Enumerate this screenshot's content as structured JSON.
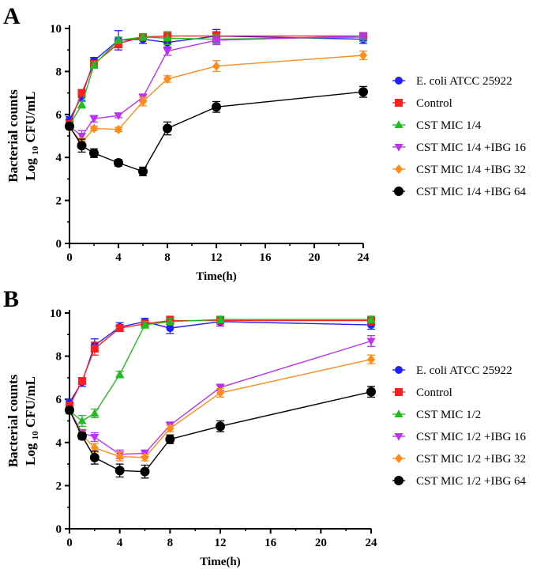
{
  "chart_data": [
    {
      "type": "line",
      "panel_label": "A",
      "xlabel": "Time(h)",
      "ylabel": "Bacterial counts",
      "ylabel_unit": {
        "pre": "Log",
        "sub": "10",
        "post": "CFU/mL"
      },
      "x": [
        0,
        1,
        2,
        4,
        6,
        8,
        12,
        24
      ],
      "xticks": [
        "0",
        "4",
        "8",
        "12",
        "16",
        "20",
        "24"
      ],
      "xlim": [
        0,
        24
      ],
      "yticks": [
        "0",
        "2",
        "4",
        "6",
        "8",
        "10"
      ],
      "ylim": [
        0,
        10
      ],
      "series": [
        {
          "name": "E. coli ATCC 25922",
          "color": "#1f1fff",
          "marker": "circle",
          "values": [
            5.75,
            6.85,
            8.5,
            9.45,
            9.5,
            9.35,
            9.65,
            9.5
          ],
          "errors": [
            0.15,
            0.2,
            0.15,
            0.45,
            0.2,
            0.25,
            0.3,
            0.2
          ]
        },
        {
          "name": "Control",
          "color": "#ff1f1f",
          "marker": "square",
          "values": [
            5.55,
            7.0,
            8.35,
            9.3,
            9.6,
            9.65,
            9.65,
            9.65
          ],
          "errors": [
            0.1,
            0.15,
            0.15,
            0.2,
            0.15,
            0.15,
            0.2,
            0.15
          ]
        },
        {
          "name": "CST MIC 1/4",
          "color": "#22bb22",
          "marker": "triangle-up",
          "values": [
            5.5,
            6.45,
            8.3,
            9.45,
            9.6,
            9.55,
            9.5,
            9.6
          ],
          "errors": [
            0.1,
            0.15,
            0.15,
            0.15,
            0.15,
            0.3,
            0.2,
            0.2
          ]
        },
        {
          "name": "CST MIC 1/4 +IBG 16",
          "color": "#bb33ee",
          "marker": "triangle-down",
          "values": [
            5.45,
            5.0,
            5.8,
            5.95,
            6.8,
            8.95,
            9.45,
            9.65
          ],
          "errors": [
            0.1,
            0.25,
            0.15,
            0.1,
            0.15,
            0.2,
            0.2,
            0.15
          ]
        },
        {
          "name": "CST MIC 1/4 +IBG 32",
          "color": "#ff8c1a",
          "marker": "diamond",
          "values": [
            5.4,
            4.7,
            5.35,
            5.3,
            6.6,
            7.65,
            8.25,
            8.75
          ],
          "errors": [
            0.1,
            0.2,
            0.1,
            0.1,
            0.2,
            0.15,
            0.25,
            0.2
          ]
        },
        {
          "name": "CST MIC 1/4 +IBG 64",
          "color": "#000000",
          "marker": "circle",
          "values": [
            5.45,
            4.55,
            4.2,
            3.75,
            3.35,
            5.35,
            6.35,
            7.05
          ],
          "errors": [
            0.1,
            0.3,
            0.2,
            0.15,
            0.2,
            0.3,
            0.25,
            0.25
          ]
        }
      ]
    },
    {
      "type": "line",
      "panel_label": "B",
      "xlabel": "Time(h)",
      "ylabel": "Bacterial counts",
      "ylabel_unit": {
        "pre": "Log",
        "sub": "10",
        "post": "CFU/mL"
      },
      "x": [
        0,
        1,
        2,
        4,
        6,
        8,
        12,
        24
      ],
      "xticks": [
        "0",
        "4",
        "8",
        "12",
        "16",
        "20",
        "24"
      ],
      "xlim": [
        0,
        24
      ],
      "yticks": [
        "0",
        "2",
        "4",
        "6",
        "8",
        "10"
      ],
      "ylim": [
        0,
        10
      ],
      "series": [
        {
          "name": "E. coli ATCC 25922",
          "color": "#1f1fff",
          "marker": "circle",
          "values": [
            5.85,
            6.8,
            8.5,
            9.35,
            9.6,
            9.3,
            9.6,
            9.45
          ],
          "errors": [
            0.15,
            0.2,
            0.3,
            0.2,
            0.15,
            0.25,
            0.2,
            0.2
          ]
        },
        {
          "name": "Control",
          "color": "#ff1f1f",
          "marker": "square",
          "values": [
            5.7,
            6.85,
            8.35,
            9.3,
            9.5,
            9.65,
            9.65,
            9.65
          ],
          "errors": [
            0.1,
            0.15,
            0.3,
            0.15,
            0.15,
            0.2,
            0.15,
            0.2
          ]
        },
        {
          "name": "CST MIC 1/2",
          "color": "#22bb22",
          "marker": "triangle-up",
          "values": [
            5.45,
            5.0,
            5.35,
            7.15,
            9.45,
            9.6,
            9.7,
            9.7
          ],
          "errors": [
            0.1,
            0.25,
            0.2,
            0.15,
            0.15,
            0.15,
            0.15,
            0.15
          ]
        },
        {
          "name": "CST MIC 1/2 +IBG 16",
          "color": "#bb33ee",
          "marker": "triangle-down",
          "values": [
            5.5,
            4.45,
            4.25,
            3.45,
            3.5,
            4.8,
            6.55,
            8.7
          ],
          "errors": [
            0.1,
            0.15,
            0.2,
            0.2,
            0.15,
            0.15,
            0.15,
            0.25
          ]
        },
        {
          "name": "CST MIC 1/2 +IBG 32",
          "color": "#ff8c1a",
          "marker": "diamond",
          "values": [
            5.5,
            4.35,
            3.75,
            3.35,
            3.3,
            4.65,
            6.3,
            7.85
          ],
          "errors": [
            0.1,
            0.15,
            0.2,
            0.2,
            0.15,
            0.15,
            0.2,
            0.2
          ]
        },
        {
          "name": "CST MIC 1/2 +IBG 64",
          "color": "#000000",
          "marker": "circle",
          "values": [
            5.5,
            4.3,
            3.3,
            2.7,
            2.65,
            4.15,
            4.75,
            6.35
          ],
          "errors": [
            0.1,
            0.15,
            0.3,
            0.3,
            0.3,
            0.2,
            0.25,
            0.25
          ]
        }
      ]
    }
  ]
}
